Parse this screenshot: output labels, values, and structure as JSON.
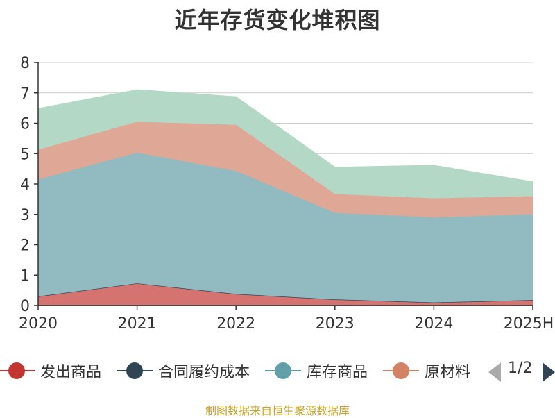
{
  "page": {
    "title": "近年存货变化堆积图",
    "source": "制图数据来自恒生聚源数据库"
  },
  "legend": {
    "items": [
      {
        "label": "发出商品",
        "color": "#c23531"
      },
      {
        "label": "合同履约成本",
        "color": "#2f4554"
      },
      {
        "label": "库存商品",
        "color": "#61a0a8"
      },
      {
        "label": "原材料",
        "color": "#d48265"
      }
    ],
    "pager": "1/2"
  },
  "chart_data": {
    "type": "area",
    "stacked": true,
    "categories": [
      "2020",
      "2021",
      "2022",
      "2023",
      "2024",
      "2025H"
    ],
    "ylim": [
      0,
      8
    ],
    "yticks": [
      "0",
      "1",
      "2",
      "3",
      "4",
      "5",
      "6",
      "7",
      "8"
    ],
    "grid": true,
    "legend_position": "bottom",
    "series": [
      {
        "name": "发出商品",
        "color": "#d47370",
        "values": [
          0.3,
          0.73,
          0.38,
          0.2,
          0.1,
          0.18
        ]
      },
      {
        "name": "合同履约成本",
        "color": "#2f4554",
        "values": [
          0.0,
          0.0,
          0.0,
          0.0,
          0.0,
          0.0
        ]
      },
      {
        "name": "库存商品",
        "color": "#91bac1",
        "values": [
          3.85,
          4.3,
          4.05,
          2.85,
          2.8,
          2.82
        ]
      },
      {
        "name": "原材料",
        "color": "#dfa896",
        "values": [
          0.98,
          1.02,
          1.52,
          0.62,
          0.63,
          0.6
        ]
      },
      {
        "color": "#b3d9c6",
        "values": [
          1.35,
          1.05,
          0.92,
          0.88,
          1.08,
          0.47
        ]
      }
    ]
  }
}
